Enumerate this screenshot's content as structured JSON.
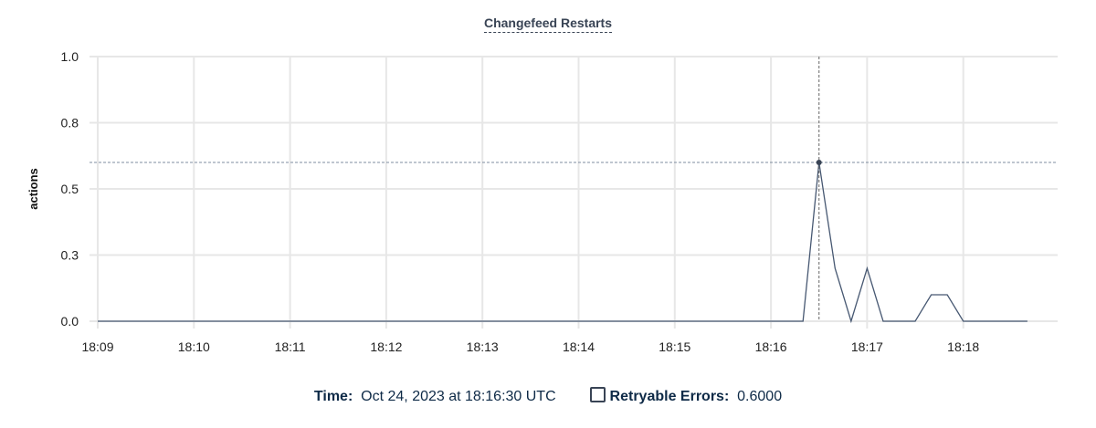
{
  "chart_data": {
    "type": "line",
    "title": "Changefeed Restarts",
    "ylabel": "actions",
    "xlabel": "",
    "ylim": [
      0,
      1.0
    ],
    "y_ticks": [
      0,
      0.25,
      0.5,
      0.75,
      1.0
    ],
    "y_tick_labels": [
      "0.0",
      "0.3",
      "0.5",
      "0.8",
      "1.0"
    ],
    "x_tick_labels": [
      "18:09",
      "18:10",
      "18:11",
      "18:12",
      "18:13",
      "18:14",
      "18:15",
      "18:16",
      "18:17",
      "18:18"
    ],
    "grid": true,
    "series": [
      {
        "name": "Retryable Errors",
        "color": "#475872",
        "x": [
          "18:09:00",
          "18:16:20",
          "18:16:30",
          "18:16:40",
          "18:16:50",
          "18:17:00",
          "18:17:10",
          "18:17:20",
          "18:17:30",
          "18:17:40",
          "18:17:50",
          "18:18:00",
          "18:18:10",
          "18:18:20",
          "18:18:30",
          "18:18:40"
        ],
        "values": [
          0,
          0,
          0.6,
          0.2,
          0,
          0.2,
          0,
          0,
          0,
          0.1,
          0.1,
          0,
          0,
          0,
          0,
          0
        ]
      }
    ],
    "hover": {
      "x": "18:16:30",
      "value": 0.6
    }
  },
  "legend": {
    "time_label": "Time:",
    "time_value": "Oct 24, 2023 at 18:16:30 UTC",
    "series_label": "Retryable Errors:",
    "series_value": "0.6000"
  }
}
